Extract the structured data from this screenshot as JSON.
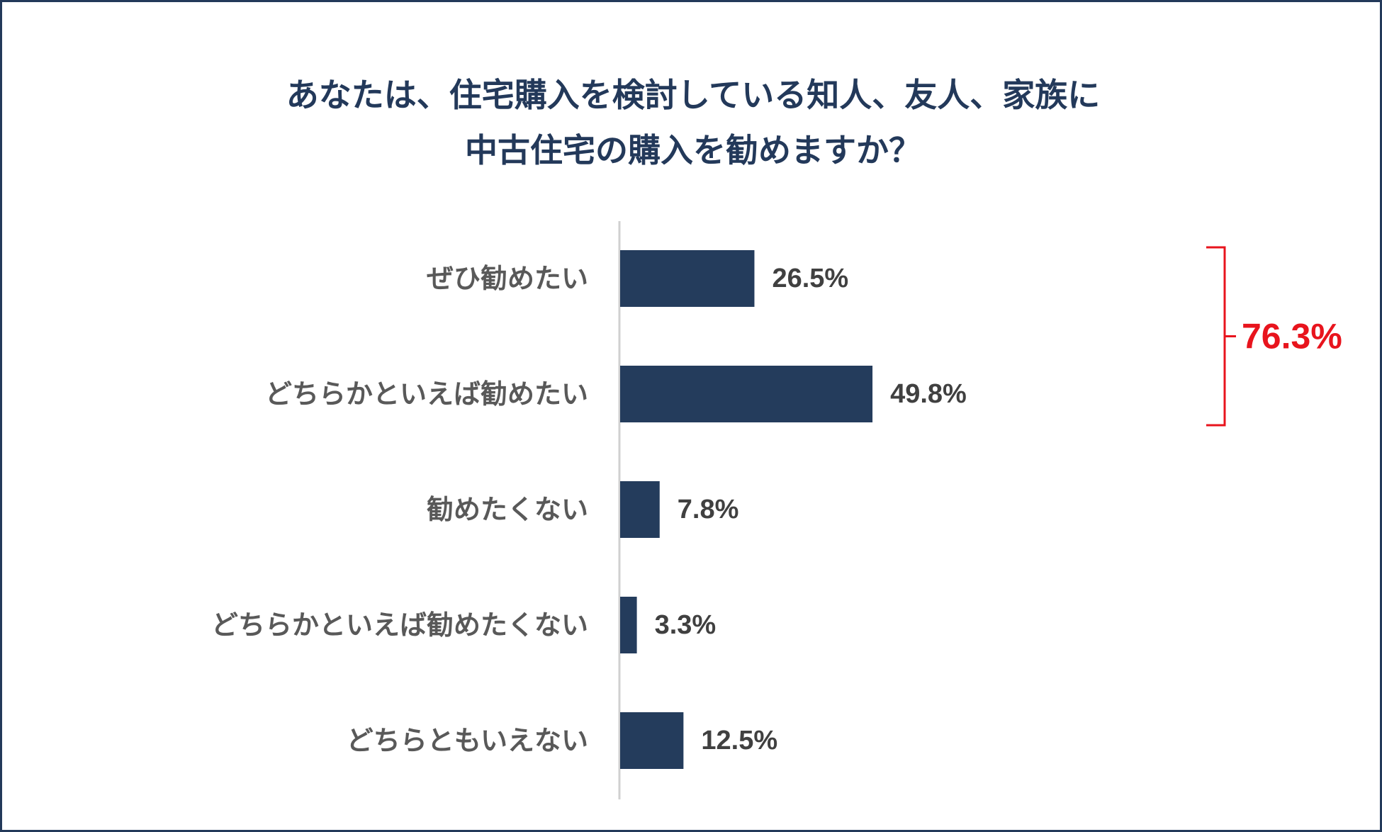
{
  "chart_data": {
    "type": "bar",
    "orientation": "horizontal",
    "title_lines": [
      "あなたは、住宅購入を検討している知人、友人、家族に",
      "中古住宅の購入を勧めますか？"
    ],
    "categories": [
      "ぜひ勧めたい",
      "どちらかといえば勧めたい",
      "勧めたくない",
      "どちらかといえば勧めたくない",
      "どちらともいえない"
    ],
    "values": [
      26.5,
      49.8,
      7.8,
      3.3,
      12.5
    ],
    "value_labels": [
      "26.5%",
      "49.8%",
      "7.8%",
      "3.3%",
      "12.5%"
    ],
    "unit": "%",
    "xlim": [
      0,
      60
    ],
    "grid": false,
    "bar_color": "#243c5c",
    "bracket": {
      "covers": [
        0,
        1
      ],
      "label": "76.3%",
      "color": "#e8141d"
    }
  }
}
